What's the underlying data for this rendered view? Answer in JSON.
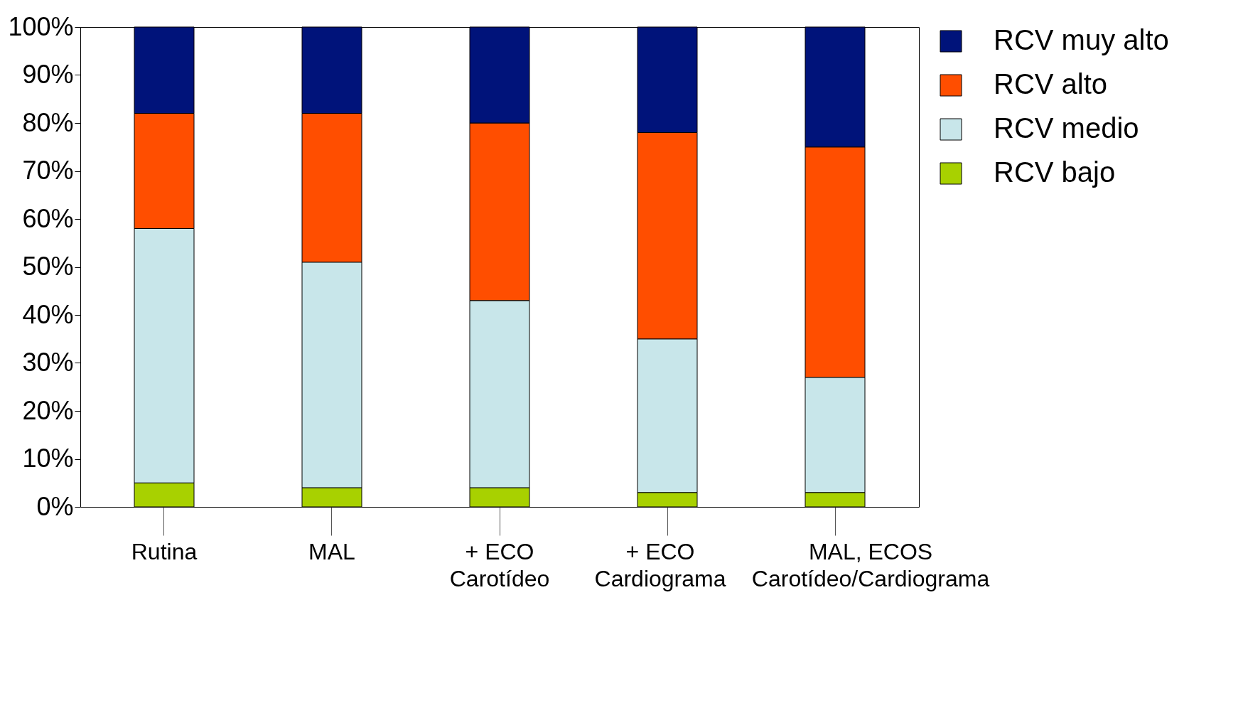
{
  "chart_data": {
    "type": "bar",
    "stacked": true,
    "categories": [
      "Rutina",
      "MAL",
      "+ ECO\nCarotídeo",
      "+ ECO\nCardiograma",
      "MAL, ECOS\nCarotídeo/Cardiograma"
    ],
    "series": [
      {
        "name": "RCV bajo",
        "color": "#a8d100",
        "values": [
          5,
          4,
          4,
          3,
          3
        ]
      },
      {
        "name": "RCV medio",
        "color": "#c8e6ea",
        "values": [
          53,
          47,
          39,
          32,
          24
        ]
      },
      {
        "name": "RCV alto",
        "color": "#ff4e00",
        "values": [
          24,
          31,
          37,
          43,
          48
        ]
      },
      {
        "name": "RCV muy alto",
        "color": "#00137a",
        "values": [
          18,
          18,
          20,
          22,
          25
        ]
      }
    ],
    "ylim": [
      0,
      100
    ],
    "yticks": [
      {
        "value": 0,
        "label": "0%"
      },
      {
        "value": 10,
        "label": "10%"
      },
      {
        "value": 20,
        "label": "20%"
      },
      {
        "value": 30,
        "label": "30%"
      },
      {
        "value": 40,
        "label": "40%"
      },
      {
        "value": 50,
        "label": "50%"
      },
      {
        "value": 60,
        "label": "60%"
      },
      {
        "value": 70,
        "label": "70%"
      },
      {
        "value": 80,
        "label": "80%"
      },
      {
        "value": 90,
        "label": "90%"
      },
      {
        "value": 100,
        "label": "100%"
      }
    ],
    "grid": false,
    "legend": "right"
  }
}
